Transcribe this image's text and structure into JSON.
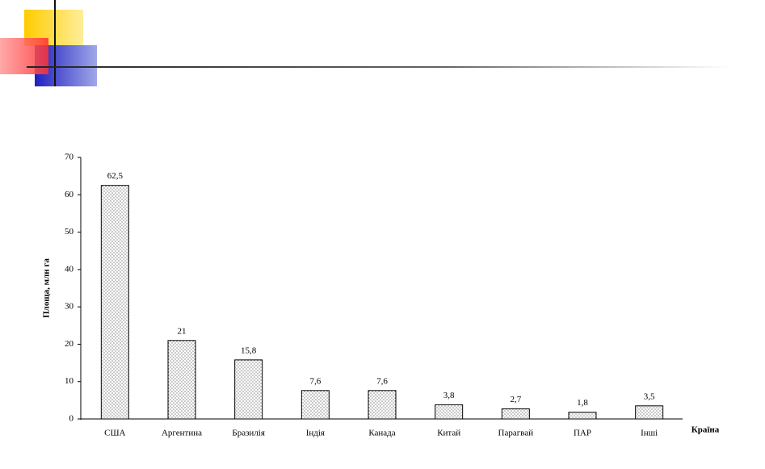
{
  "chart_data": {
    "type": "bar",
    "x_label": "Країна",
    "y_label": "Площа, млн га",
    "categories": [
      "США",
      "Аргентина",
      "Бразилія",
      "Індія",
      "Канада",
      "Китай",
      "Парагвай",
      "ПАР",
      "Інші"
    ],
    "values": [
      62.5,
      21,
      15.8,
      7.6,
      7.6,
      3.8,
      2.7,
      1.8,
      3.5
    ],
    "value_labels": [
      "62,5",
      "21",
      "15,8",
      "7,6",
      "7,6",
      "3,8",
      "2,7",
      "1,8",
      "3,5"
    ],
    "color": "#555555",
    "ylim": [
      0,
      70
    ],
    "yticks": [
      0,
      10,
      20,
      30,
      40,
      50,
      60,
      70
    ],
    "grid": false
  }
}
